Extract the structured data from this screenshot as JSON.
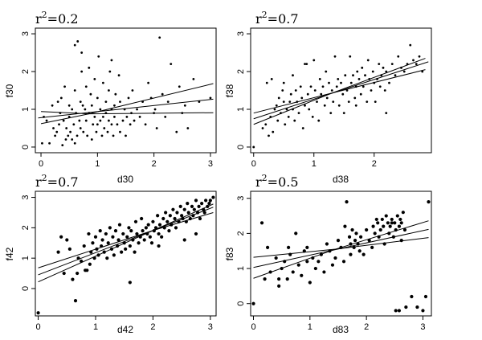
{
  "chart_data": [
    {
      "type": "scatter",
      "title_prefix": "r",
      "title_sup": "2",
      "title_value": "=0.2",
      "xlabel": "d30",
      "ylabel": "f30",
      "xlim": [
        -0.1,
        3.1
      ],
      "ylim": [
        -0.15,
        3.15
      ],
      "xticks": [
        0,
        1,
        2,
        3
      ],
      "yticks": [
        0,
        1,
        2,
        3
      ],
      "grid": false,
      "marker_size": "small",
      "fit": {
        "intercept": 0.78,
        "slope": 0.16
      },
      "band": {
        "lower": [
          [
            0,
            0.94
          ],
          [
            0.85,
            0.88
          ],
          [
            3.05,
            0.91
          ]
        ],
        "upper": [
          [
            0,
            0.62
          ],
          [
            0.85,
            0.88
          ],
          [
            3.05,
            1.68
          ]
        ]
      },
      "x": [
        0.02,
        0.05,
        0.1,
        0.15,
        0.2,
        0.22,
        0.25,
        0.28,
        0.3,
        0.32,
        0.34,
        0.36,
        0.38,
        0.4,
        0.42,
        0.44,
        0.45,
        0.48,
        0.5,
        0.5,
        0.52,
        0.55,
        0.55,
        0.58,
        0.6,
        0.6,
        0.62,
        0.64,
        0.65,
        0.68,
        0.7,
        0.7,
        0.72,
        0.74,
        0.75,
        0.78,
        0.8,
        0.8,
        0.82,
        0.85,
        0.85,
        0.88,
        0.9,
        0.9,
        0.92,
        0.95,
        0.95,
        0.98,
        1.0,
        1.0,
        1.02,
        1.05,
        1.05,
        1.08,
        1.1,
        1.1,
        1.12,
        1.15,
        1.15,
        1.18,
        1.2,
        1.2,
        1.22,
        1.25,
        1.25,
        1.28,
        1.3,
        1.3,
        1.32,
        1.35,
        1.38,
        1.4,
        1.4,
        1.45,
        1.48,
        1.5,
        1.52,
        1.55,
        1.58,
        1.6,
        1.62,
        1.65,
        1.7,
        1.75,
        1.8,
        1.85,
        1.9,
        1.95,
        2.0,
        2.02,
        2.05,
        2.1,
        2.15,
        2.2,
        2.25,
        2.3,
        2.4,
        2.45,
        2.5,
        2.55,
        2.6,
        2.7,
        2.8,
        3.0,
        1.25,
        0.6,
        0.72
      ],
      "y": [
        0.1,
        0.8,
        0.7,
        0.1,
        1.1,
        0.5,
        0.3,
        0.4,
        1.2,
        0.6,
        0.9,
        1.3,
        0.05,
        0.7,
        1.6,
        0.2,
        0.5,
        0.3,
        1.1,
        0.8,
        0.4,
        0.2,
        1.0,
        0.6,
        1.5,
        0.1,
        0.9,
        0.3,
        2.8,
        0.7,
        1.2,
        0.5,
        2.0,
        1.1,
        0.4,
        1.0,
        1.6,
        0.7,
        0.3,
        2.1,
        0.9,
        1.4,
        0.2,
        1.1,
        0.6,
        1.8,
        0.8,
        0.4,
        1.3,
        0.6,
        2.4,
        0.7,
        1.0,
        0.3,
        1.7,
        0.8,
        0.5,
        1.2,
        0.9,
        0.4,
        1.5,
        0.7,
        2.0,
        1.0,
        0.6,
        0.3,
        1.1,
        0.8,
        1.4,
        0.6,
        1.9,
        0.4,
        1.2,
        0.7,
        1.0,
        0.3,
        0.8,
        1.3,
        0.6,
        0.9,
        1.5,
        0.7,
        1.0,
        0.8,
        1.2,
        0.6,
        1.7,
        1.3,
        0.9,
        1.0,
        0.5,
        2.9,
        1.4,
        0.8,
        1.2,
        2.2,
        0.4,
        1.6,
        0.9,
        1.1,
        0.5,
        1.8,
        1.2,
        1.3,
        2.3,
        2.7,
        2.5
      ],
      "label_format": "plain"
    },
    {
      "type": "scatter",
      "title_prefix": "r",
      "title_sup": "2",
      "title_value": "=0.7",
      "xlabel": "d38",
      "ylabel": "f38",
      "xlim": [
        -0.05,
        2.95
      ],
      "ylim": [
        -0.15,
        3.15
      ],
      "xticks": [
        0,
        1,
        2
      ],
      "yticks": [
        0,
        1,
        2,
        3
      ],
      "grid": false,
      "marker_size": "small",
      "fit": {
        "intercept": 0.75,
        "slope": 0.52
      },
      "band": {
        "lower": [
          [
            0,
            0.6
          ],
          [
            1.3,
            1.43
          ],
          [
            2.85,
            2.35
          ]
        ],
        "upper": [
          [
            0,
            0.9
          ],
          [
            1.3,
            1.43
          ],
          [
            2.85,
            2.05
          ]
        ]
      },
      "x": [
        0.0,
        0.15,
        0.2,
        0.22,
        0.25,
        0.28,
        0.3,
        0.32,
        0.35,
        0.38,
        0.4,
        0.42,
        0.45,
        0.48,
        0.5,
        0.52,
        0.55,
        0.58,
        0.6,
        0.62,
        0.65,
        0.68,
        0.7,
        0.72,
        0.75,
        0.78,
        0.8,
        0.82,
        0.85,
        0.88,
        0.9,
        0.92,
        0.95,
        0.98,
        1.0,
        1.02,
        1.05,
        1.08,
        1.1,
        1.12,
        1.15,
        1.18,
        1.2,
        1.22,
        1.25,
        1.28,
        1.3,
        1.32,
        1.35,
        1.38,
        1.4,
        1.42,
        1.45,
        1.48,
        1.5,
        1.52,
        1.55,
        1.58,
        1.6,
        1.62,
        1.65,
        1.68,
        1.7,
        1.72,
        1.75,
        1.78,
        1.8,
        1.82,
        1.85,
        1.88,
        1.9,
        1.92,
        1.95,
        1.98,
        2.0,
        2.02,
        2.05,
        2.08,
        2.1,
        2.12,
        2.15,
        2.18,
        2.2,
        2.25,
        2.3,
        2.35,
        2.4,
        2.45,
        2.5,
        2.55,
        2.6,
        2.65,
        2.7,
        2.75,
        2.8,
        0.5,
        0.65,
        0.85,
        1.7,
        2.2
      ],
      "y": [
        0.0,
        0.5,
        0.6,
        1.7,
        0.3,
        0.8,
        1.8,
        0.4,
        1.0,
        1.1,
        0.7,
        1.3,
        0.9,
        1.5,
        1.2,
        0.6,
        1.0,
        0.8,
        1.2,
        1.4,
        1.0,
        0.7,
        1.5,
        1.2,
        0.9,
        1.6,
        1.3,
        0.5,
        1.1,
        2.2,
        1.4,
        1.0,
        1.6,
        0.8,
        2.3,
        1.5,
        1.2,
        0.7,
        1.8,
        1.4,
        1.6,
        1.1,
        2.0,
        1.3,
        1.7,
        0.9,
        1.5,
        1.2,
        2.4,
        1.6,
        1.8,
        1.1,
        1.7,
        1.4,
        0.9,
        1.9,
        1.5,
        1.2,
        2.4,
        1.7,
        1.9,
        1.3,
        1.6,
        2.0,
        1.8,
        1.4,
        2.1,
        1.6,
        1.9,
        1.2,
        2.3,
        1.8,
        1.5,
        2.0,
        1.7,
        1.2,
        1.8,
        2.2,
        1.6,
        1.9,
        2.1,
        1.5,
        2.0,
        1.7,
        2.2,
        1.9,
        2.4,
        2.1,
        2.0,
        2.2,
        2.7,
        2.3,
        2.2,
        2.4,
        2.0,
        1.7,
        1.9,
        2.2,
        1.1,
        0.9
      ],
      "label_format": "plain"
    },
    {
      "type": "scatter",
      "title_prefix": "r",
      "title_sup": "2",
      "title_value": "=0.7",
      "xlabel": "d42",
      "ylabel": "f42",
      "xlim": [
        -0.05,
        3.1
      ],
      "ylim": [
        -0.9,
        3.2
      ],
      "xticks": [
        0,
        1,
        2,
        3
      ],
      "yticks": [
        0,
        1,
        2,
        3
      ],
      "grid": false,
      "marker_size": "large",
      "fit": {
        "intercept": 0.45,
        "slope": 0.73
      },
      "band": {
        "lower": [
          [
            0,
            0.22
          ],
          [
            2.0,
            1.91
          ],
          [
            3.05,
            2.5
          ]
        ],
        "upper": [
          [
            0,
            0.68
          ],
          [
            2.0,
            1.91
          ],
          [
            3.05,
            2.78
          ]
        ]
      },
      "x": [
        0.0,
        0.35,
        0.4,
        0.45,
        0.5,
        0.55,
        0.6,
        0.65,
        0.7,
        0.75,
        0.8,
        0.85,
        0.88,
        0.9,
        0.92,
        0.95,
        0.98,
        1.0,
        1.02,
        1.05,
        1.08,
        1.1,
        1.12,
        1.15,
        1.18,
        1.2,
        1.22,
        1.25,
        1.28,
        1.3,
        1.32,
        1.35,
        1.38,
        1.4,
        1.42,
        1.45,
        1.48,
        1.5,
        1.52,
        1.55,
        1.58,
        1.6,
        1.62,
        1.65,
        1.68,
        1.7,
        1.72,
        1.75,
        1.78,
        1.8,
        1.82,
        1.85,
        1.88,
        1.9,
        1.92,
        1.95,
        1.98,
        2.0,
        2.02,
        2.05,
        2.08,
        2.1,
        2.12,
        2.15,
        2.18,
        2.2,
        2.22,
        2.25,
        2.28,
        2.3,
        2.32,
        2.35,
        2.38,
        2.4,
        2.42,
        2.45,
        2.48,
        2.5,
        2.52,
        2.55,
        2.58,
        2.6,
        2.62,
        2.65,
        2.68,
        2.7,
        2.72,
        2.75,
        2.78,
        2.8,
        2.82,
        2.85,
        2.88,
        2.9,
        2.92,
        2.95,
        2.98,
        3.0,
        3.05,
        0.68,
        1.6,
        2.1,
        2.55,
        2.75,
        0.82
      ],
      "y": [
        -0.8,
        1.2,
        1.7,
        0.5,
        1.6,
        1.3,
        0.3,
        -0.4,
        1.0,
        0.9,
        1.4,
        0.6,
        1.8,
        0.8,
        1.2,
        1.5,
        1.0,
        1.7,
        1.3,
        1.1,
        1.9,
        1.4,
        1.6,
        1.2,
        1.8,
        1.0,
        1.5,
        2.0,
        1.3,
        1.7,
        1.1,
        1.9,
        1.4,
        1.6,
        2.1,
        1.2,
        1.8,
        1.5,
        1.3,
        1.7,
        2.0,
        1.4,
        1.9,
        1.6,
        1.2,
        2.2,
        1.8,
        1.5,
        1.7,
        2.3,
        1.9,
        1.6,
        2.0,
        1.8,
        2.1,
        1.7,
        1.5,
        2.2,
        1.9,
        2.0,
        2.4,
        1.8,
        2.1,
        1.7,
        2.3,
        2.0,
        2.5,
        2.2,
        1.9,
        2.4,
        2.1,
        2.6,
        2.3,
        2.0,
        2.5,
        2.2,
        2.7,
        2.4,
        2.3,
        2.6,
        2.2,
        2.8,
        2.5,
        2.3,
        2.7,
        2.4,
        2.6,
        2.9,
        2.5,
        2.7,
        2.3,
        2.8,
        2.6,
        2.5,
        2.9,
        2.7,
        2.8,
        2.9,
        3.0,
        0.5,
        0.2,
        1.4,
        1.6,
        1.8,
        0.6
      ],
      "label_format": "plain"
    },
    {
      "type": "scatter",
      "title_prefix": "r",
      "title_sup": "2",
      "title_value": "=0.5",
      "xlabel": "d83",
      "ylabel": "f83",
      "xlim": [
        -0.05,
        3.15
      ],
      "ylim": [
        -0.35,
        3.2
      ],
      "xticks": [
        0,
        1,
        2,
        3
      ],
      "yticks": [
        0,
        1,
        2,
        3
      ],
      "grid": false,
      "marker_size": "large",
      "fit": {
        "intercept": 1.03,
        "slope": 0.35
      },
      "band": {
        "lower": [
          [
            0,
            1.32
          ],
          [
            1.45,
            1.55
          ],
          [
            3.1,
            1.88
          ]
        ],
        "upper": [
          [
            0,
            0.72
          ],
          [
            1.45,
            1.55
          ],
          [
            3.1,
            2.36
          ]
        ]
      },
      "x": [
        0.0,
        0.15,
        0.2,
        0.25,
        0.3,
        0.4,
        0.45,
        0.5,
        0.55,
        0.6,
        0.65,
        0.7,
        0.75,
        0.8,
        0.85,
        0.9,
        0.95,
        1.0,
        1.05,
        1.1,
        1.15,
        1.2,
        1.25,
        1.3,
        1.35,
        1.4,
        1.45,
        1.5,
        1.55,
        1.6,
        1.65,
        1.7,
        1.72,
        1.75,
        1.78,
        1.8,
        1.82,
        1.85,
        1.88,
        1.9,
        1.95,
        2.0,
        2.05,
        2.1,
        2.15,
        2.2,
        2.22,
        2.25,
        2.28,
        2.3,
        2.32,
        2.35,
        2.38,
        2.4,
        2.42,
        2.45,
        2.48,
        2.5,
        2.52,
        2.55,
        2.58,
        2.6,
        2.62,
        2.65,
        2.7,
        2.8,
        2.9,
        3.0,
        3.05,
        3.1,
        0.45,
        0.62,
        0.95,
        1.62,
        1.72,
        2.12,
        2.18,
        2.52,
        2.58,
        2.62,
        2.45,
        2.68
      ],
      "y": [
        0.0,
        2.3,
        0.7,
        1.6,
        0.9,
        1.3,
        0.5,
        1.0,
        1.2,
        0.7,
        1.4,
        0.9,
        2.0,
        1.1,
        0.8,
        1.5,
        1.6,
        0.6,
        1.3,
        1.0,
        1.2,
        1.4,
        0.9,
        1.7,
        1.5,
        1.1,
        1.3,
        1.8,
        1.6,
        1.2,
        2.9,
        1.9,
        1.7,
        2.1,
        1.6,
        1.8,
        2.0,
        1.7,
        1.5,
        1.9,
        1.4,
        2.1,
        1.8,
        1.6,
        2.0,
        2.3,
        1.9,
        2.1,
        2.4,
        2.2,
        1.7,
        2.5,
        2.3,
        2.0,
        2.2,
        2.4,
        1.9,
        2.3,
        2.1,
        2.5,
        2.2,
        2.4,
        1.8,
        2.6,
        -0.1,
        0.2,
        -0.1,
        -0.2,
        0.2,
        2.9,
        0.7,
        1.6,
        1.2,
        2.2,
        1.4,
        2.2,
        2.4,
        -0.2,
        -0.2,
        2.3,
        2.3,
        2.1
      ],
      "label_format": "plain"
    }
  ]
}
